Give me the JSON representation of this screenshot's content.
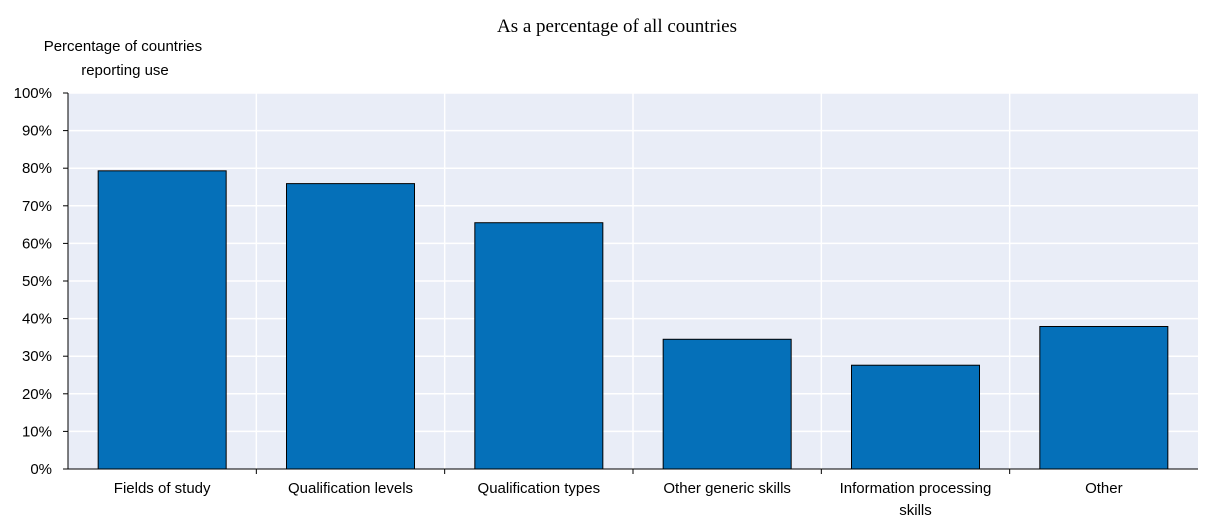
{
  "chart_data": {
    "type": "bar",
    "subtitle": "As a percentage of all countries",
    "ylabel": [
      "Percentage of countries",
      "reporting use"
    ],
    "categories": [
      [
        "Fields of study"
      ],
      [
        "Qualification levels"
      ],
      [
        "Qualification types"
      ],
      [
        "Other generic skills"
      ],
      [
        "Information processing",
        "skills"
      ],
      [
        "Other"
      ]
    ],
    "values": [
      79.3,
      75.9,
      65.5,
      34.5,
      27.6,
      37.9
    ],
    "ylim": [
      0,
      100
    ],
    "yticks": [
      "0%",
      "10%",
      "20%",
      "30%",
      "40%",
      "50%",
      "60%",
      "70%",
      "80%",
      "90%",
      "100%"
    ],
    "grid": true,
    "colors": {
      "bar": "#0570b9",
      "bar_edge": "#000000",
      "plot_bg": "#e9edf7",
      "grid": "#ffffff"
    }
  }
}
